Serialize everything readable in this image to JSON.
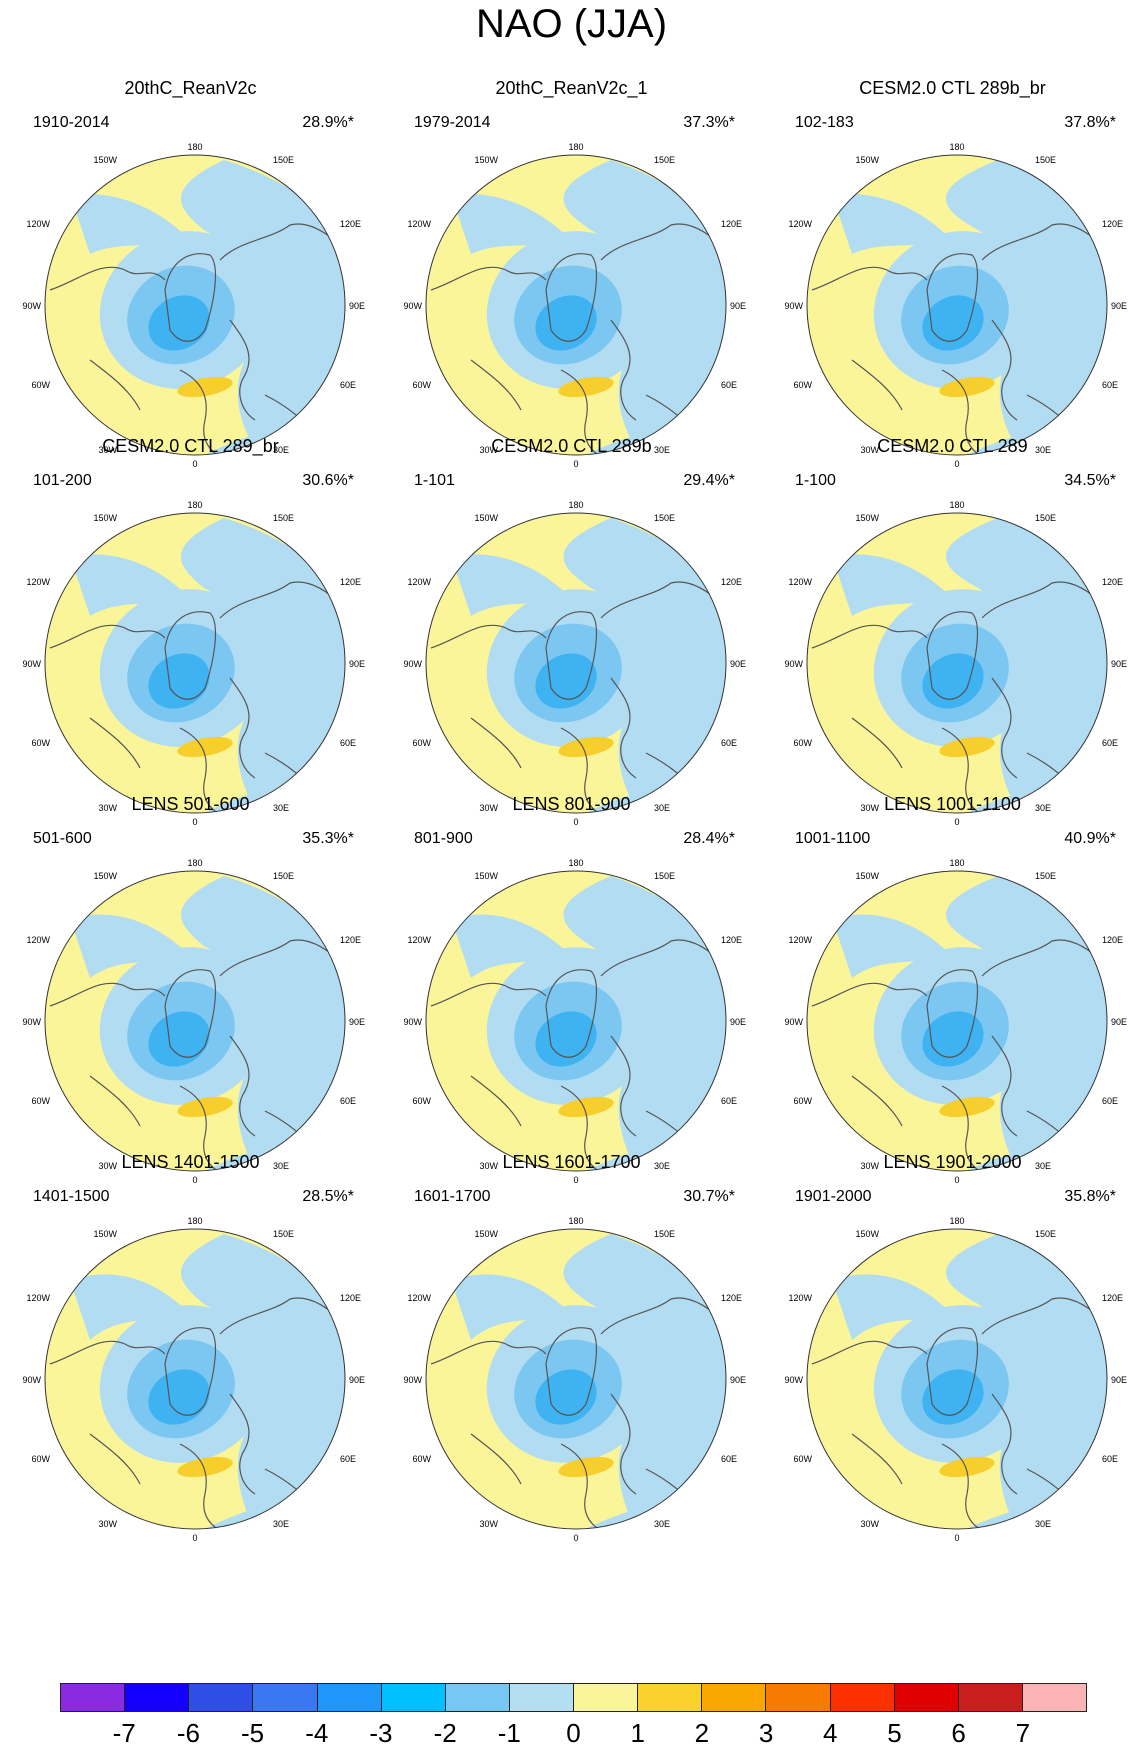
{
  "title": "NAO (JJA)",
  "colors": {
    "negative_weak": "#b2dcf2",
    "negative_mid": "#7bc7f2",
    "negative_strong": "#3fb2f1",
    "positive_weak": "#fbf59a",
    "positive_mid": "#f7cf2c",
    "land_outline": "#555555"
  },
  "panels": [
    {
      "title": "20thC_ReanV2c",
      "period": "1910-2014",
      "variance": "28.9%*"
    },
    {
      "title": "20thC_ReanV2c_1",
      "period": "1979-2014",
      "variance": "37.3%*"
    },
    {
      "title": "CESM2.0 CTL 289b_br",
      "period": "102-183",
      "variance": "37.8%*"
    },
    {
      "title": "CESM2.0 CTL 289_br",
      "period": "101-200",
      "variance": "30.6%*"
    },
    {
      "title": "CESM2.0 CTL 289b",
      "period": "1-101",
      "variance": "29.4%*"
    },
    {
      "title": "CESM2.0 CTL 289",
      "period": "1-100",
      "variance": "34.5%*"
    },
    {
      "title": "LENS 501-600",
      "period": "501-600",
      "variance": "35.3%*"
    },
    {
      "title": "LENS 801-900",
      "period": "801-900",
      "variance": "28.4%*"
    },
    {
      "title": "LENS 1001-1100",
      "period": "1001-1100",
      "variance": "40.9%*"
    },
    {
      "title": "LENS 1401-1500",
      "period": "1401-1500",
      "variance": "28.5%*"
    },
    {
      "title": "LENS 1601-1700",
      "period": "1601-1700",
      "variance": "30.7%*"
    },
    {
      "title": "LENS 1901-2000",
      "period": "1901-2000",
      "variance": "35.8%*"
    }
  ],
  "longitude_labels": {
    "top": "180",
    "bottom": "0",
    "w150": "150W",
    "e150": "150E",
    "w120": "120W",
    "e120": "120E",
    "w90": "90W",
    "e90": "90E",
    "w60": "60W",
    "e60": "60E",
    "w30": "30W",
    "e30": "30E"
  },
  "colorbar": {
    "labels": [
      "-7",
      "-6",
      "-5",
      "-4",
      "-3",
      "-2",
      "-1",
      "0",
      "1",
      "2",
      "3",
      "4",
      "5",
      "6",
      "7"
    ],
    "colors": [
      "#8a2be2",
      "#1400ff",
      "#2e4ee6",
      "#3978f0",
      "#1e96fa",
      "#00c0ff",
      "#76c8f3",
      "#b4def2",
      "#fbf59a",
      "#fbd22c",
      "#f9a800",
      "#f77b00",
      "#fb3200",
      "#e10000",
      "#c81e1e",
      "#fbb4b4"
    ]
  }
}
